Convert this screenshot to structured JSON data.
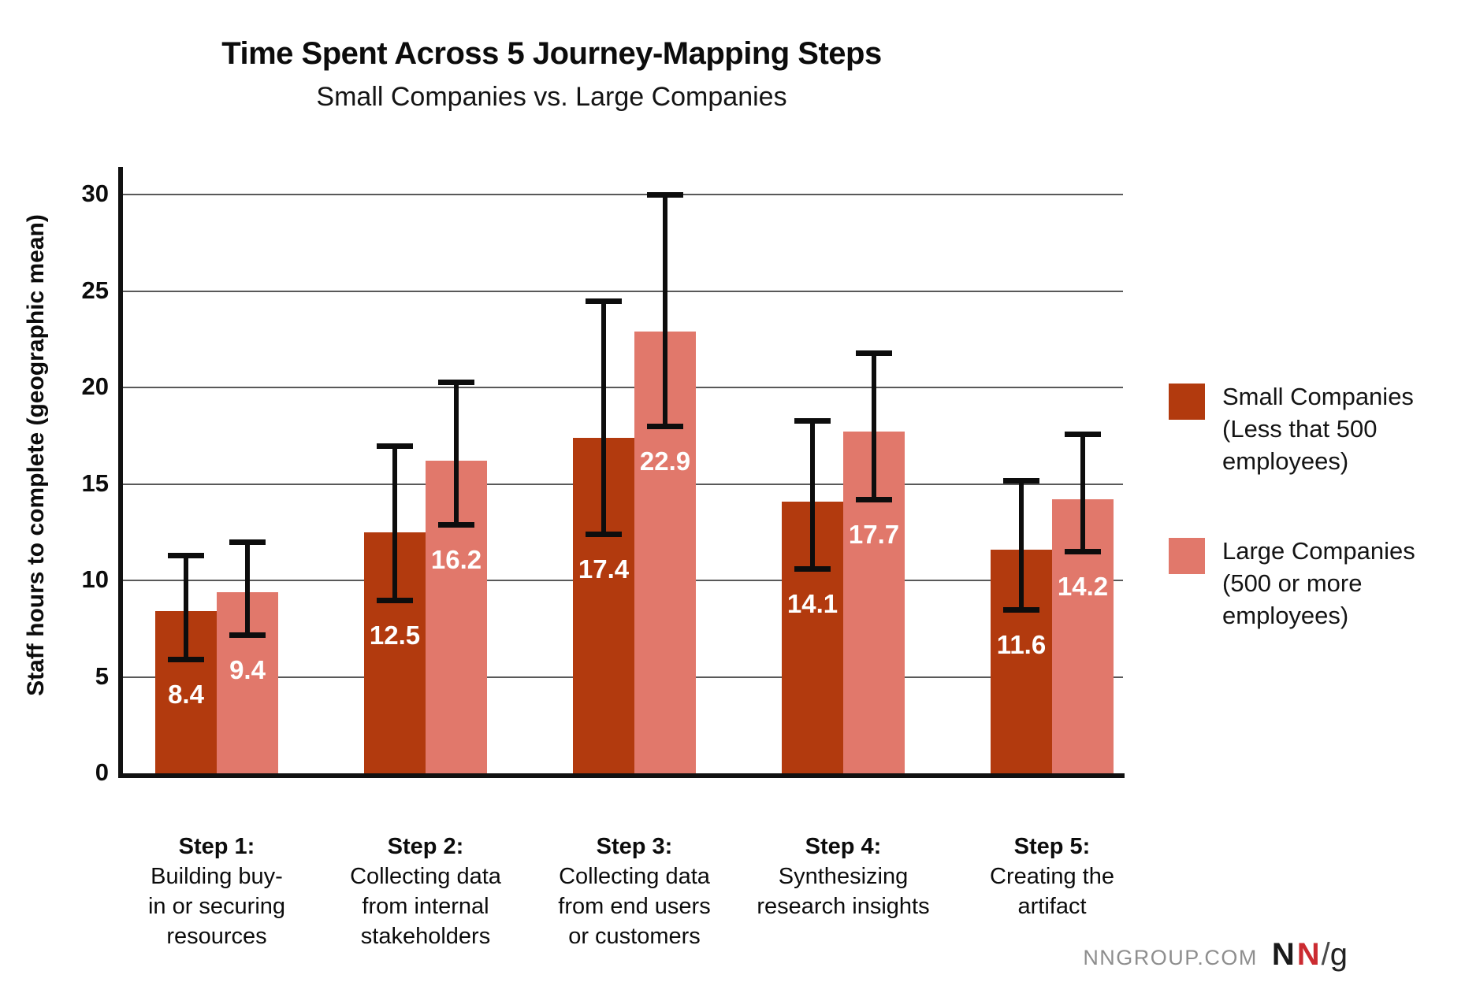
{
  "title": "Time Spent Across 5 Journey-Mapping Steps",
  "subtitle": "Small Companies vs. Large Companies",
  "footer": {
    "site": "NNGROUP.COM",
    "logo": {
      "n1": "N",
      "n2": "N",
      "slash": "/",
      "g": "g"
    }
  },
  "chart_data": {
    "type": "bar",
    "title": "Time Spent Across 5 Journey-Mapping Steps",
    "subtitle": "Small Companies vs. Large Companies",
    "ylabel": "Staff hours to complete (geographic mean)",
    "ylim": [
      0,
      30
    ],
    "yticks": [
      0,
      5,
      10,
      15,
      20,
      25,
      30
    ],
    "grid": true,
    "legend_position": "right",
    "error_bars": true,
    "categories": [
      {
        "step": "Step 1:",
        "lines": [
          "Building buy-",
          "in or securing",
          "resources"
        ]
      },
      {
        "step": "Step 2:",
        "lines": [
          "Collecting data",
          "from internal",
          "stakeholders"
        ]
      },
      {
        "step": "Step 3:",
        "lines": [
          "Collecting data",
          "from end users",
          "or customers"
        ]
      },
      {
        "step": "Step 4:",
        "lines": [
          "Synthesizing",
          "research insights"
        ]
      },
      {
        "step": "Step 5:",
        "lines": [
          "Creating the",
          "artifact"
        ]
      }
    ],
    "series": [
      {
        "name": "Small Companies (Less that 500 employees)",
        "legend_lines": [
          "Small Companies",
          "(Less that 500",
          "employees)"
        ],
        "color": "#b23a0e",
        "values": [
          8.4,
          12.5,
          17.4,
          14.1,
          11.6
        ],
        "error_low": [
          5.9,
          9.0,
          12.4,
          10.6,
          8.5
        ],
        "error_high": [
          11.3,
          17.0,
          24.5,
          18.3,
          15.2
        ],
        "value_label_color": "#ffffff"
      },
      {
        "name": "Large Companies (500 or more employees)",
        "legend_lines": [
          "Large Companies",
          "(500 or more",
          "employees)"
        ],
        "color": "#e1786b",
        "values": [
          9.4,
          16.2,
          22.9,
          17.7,
          14.2
        ],
        "error_low": [
          7.2,
          12.9,
          18.0,
          14.2,
          11.5
        ],
        "error_high": [
          12.0,
          20.3,
          30.0,
          21.8,
          17.6
        ],
        "value_label_color": "#ffffff"
      }
    ]
  }
}
